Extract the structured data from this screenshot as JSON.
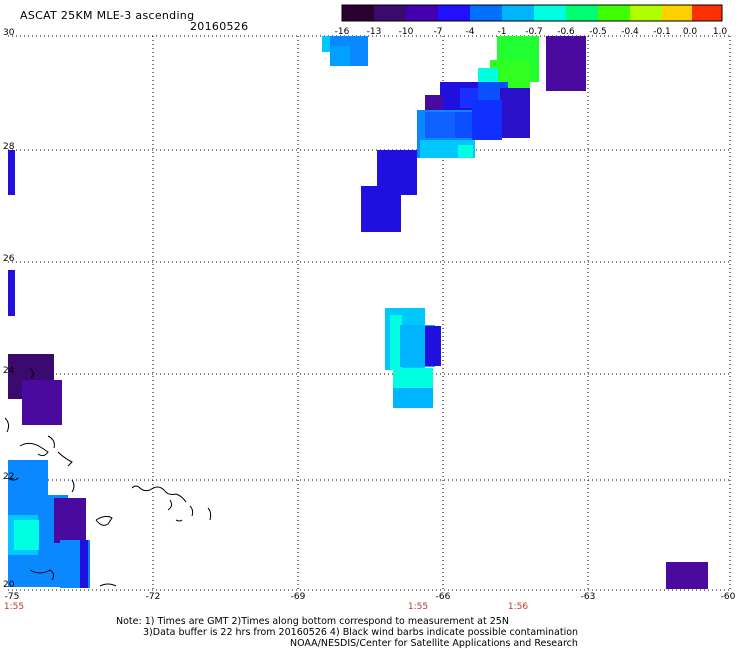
{
  "header": {
    "title": "ASCAT 25KM MLE-3 ascending",
    "date": "20160526"
  },
  "colorbar": {
    "labels": [
      "-16",
      "-13",
      "-10",
      "-7",
      "-4",
      "-1",
      "-0.7",
      "-0.6",
      "-0.5",
      "-0.4",
      "-0.1",
      "0.0",
      "1.0"
    ],
    "colors": [
      "#2a0030",
      "#3b0a6e",
      "#4400b0",
      "#2010ff",
      "#0070ff",
      "#00b4ff",
      "#00ffe0",
      "#00ff70",
      "#40ff00",
      "#b0ff00",
      "#ffff00",
      "#ffa000",
      "#ff2000"
    ]
  },
  "axes": {
    "lat_labels": [
      "30",
      "28",
      "26",
      "24",
      "22",
      "20"
    ],
    "lon_labels": [
      "-75",
      "-72",
      "-69",
      "-66",
      "-63",
      "-60"
    ],
    "time_labels": [
      "1:55",
      "1:55",
      "1:56"
    ],
    "lon_range": [
      -75,
      -60
    ],
    "lat_range": [
      20,
      30
    ]
  },
  "notes": {
    "line1": "Note: 1) Times are GMT 2)Times along bottom correspond to measurement at 25N",
    "line2": "3)Data buffer is 22 hrs from 20160526 4) Black wind barbs indicate possible contamination",
    "line3": "NOAA/NESDIS/Center for Satellite Applications and Research"
  },
  "legend_colors": {
    "darkest": "#2a0030",
    "purple": "#4a0aa0",
    "blue": "#2010e0",
    "azure": "#0a88ff",
    "cyan": "#00c8ff",
    "aqua": "#00ffe0",
    "green": "#20ff20"
  }
}
